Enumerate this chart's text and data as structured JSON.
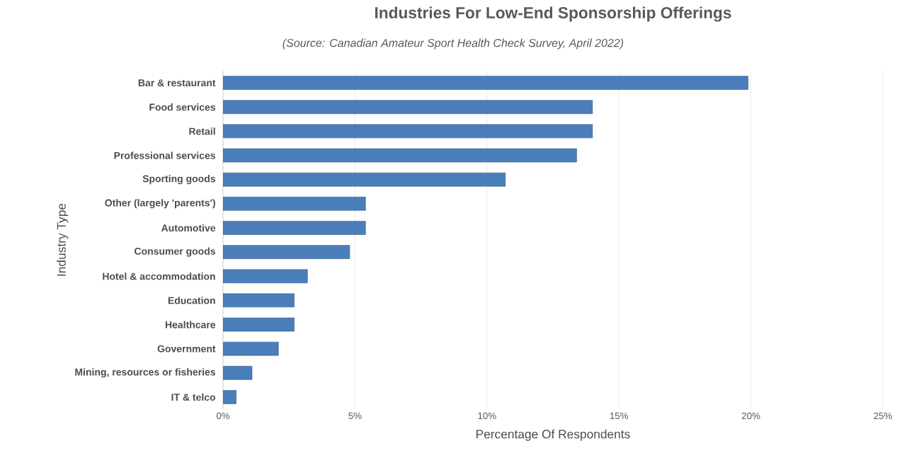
{
  "chart_data": {
    "type": "bar",
    "orientation": "horizontal",
    "title": "Industries For Low-End Sponsorship Offerings",
    "subtitle": "(Source: Canadian Amateur Sport Health Check Survey, April 2022)",
    "xlabel": "Percentage Of Respondents",
    "ylabel": "Industry Type",
    "categories": [
      "Bar & restaurant",
      "Food services",
      "Retail",
      "Professional services",
      "Sporting goods",
      "Other (largely 'parents')",
      "Automotive",
      "Consumer goods",
      "Hotel & accommodation",
      "Education",
      "Healthcare",
      "Government",
      "Mining, resources or fisheries",
      "IT & telco"
    ],
    "values": [
      19.9,
      14.0,
      14.0,
      13.4,
      10.7,
      5.4,
      5.4,
      4.8,
      3.2,
      2.7,
      2.7,
      2.1,
      1.1,
      0.5
    ],
    "color": "#4a7ebb",
    "xlim": [
      0,
      25
    ],
    "xticks": [
      {
        "value": 0,
        "label": "0%"
      },
      {
        "value": 5,
        "label": "5%"
      },
      {
        "value": 10,
        "label": "10%"
      },
      {
        "value": 15,
        "label": "15%"
      },
      {
        "value": 20,
        "label": "20%"
      },
      {
        "value": 25,
        "label": "25%"
      }
    ],
    "grid": "x"
  }
}
